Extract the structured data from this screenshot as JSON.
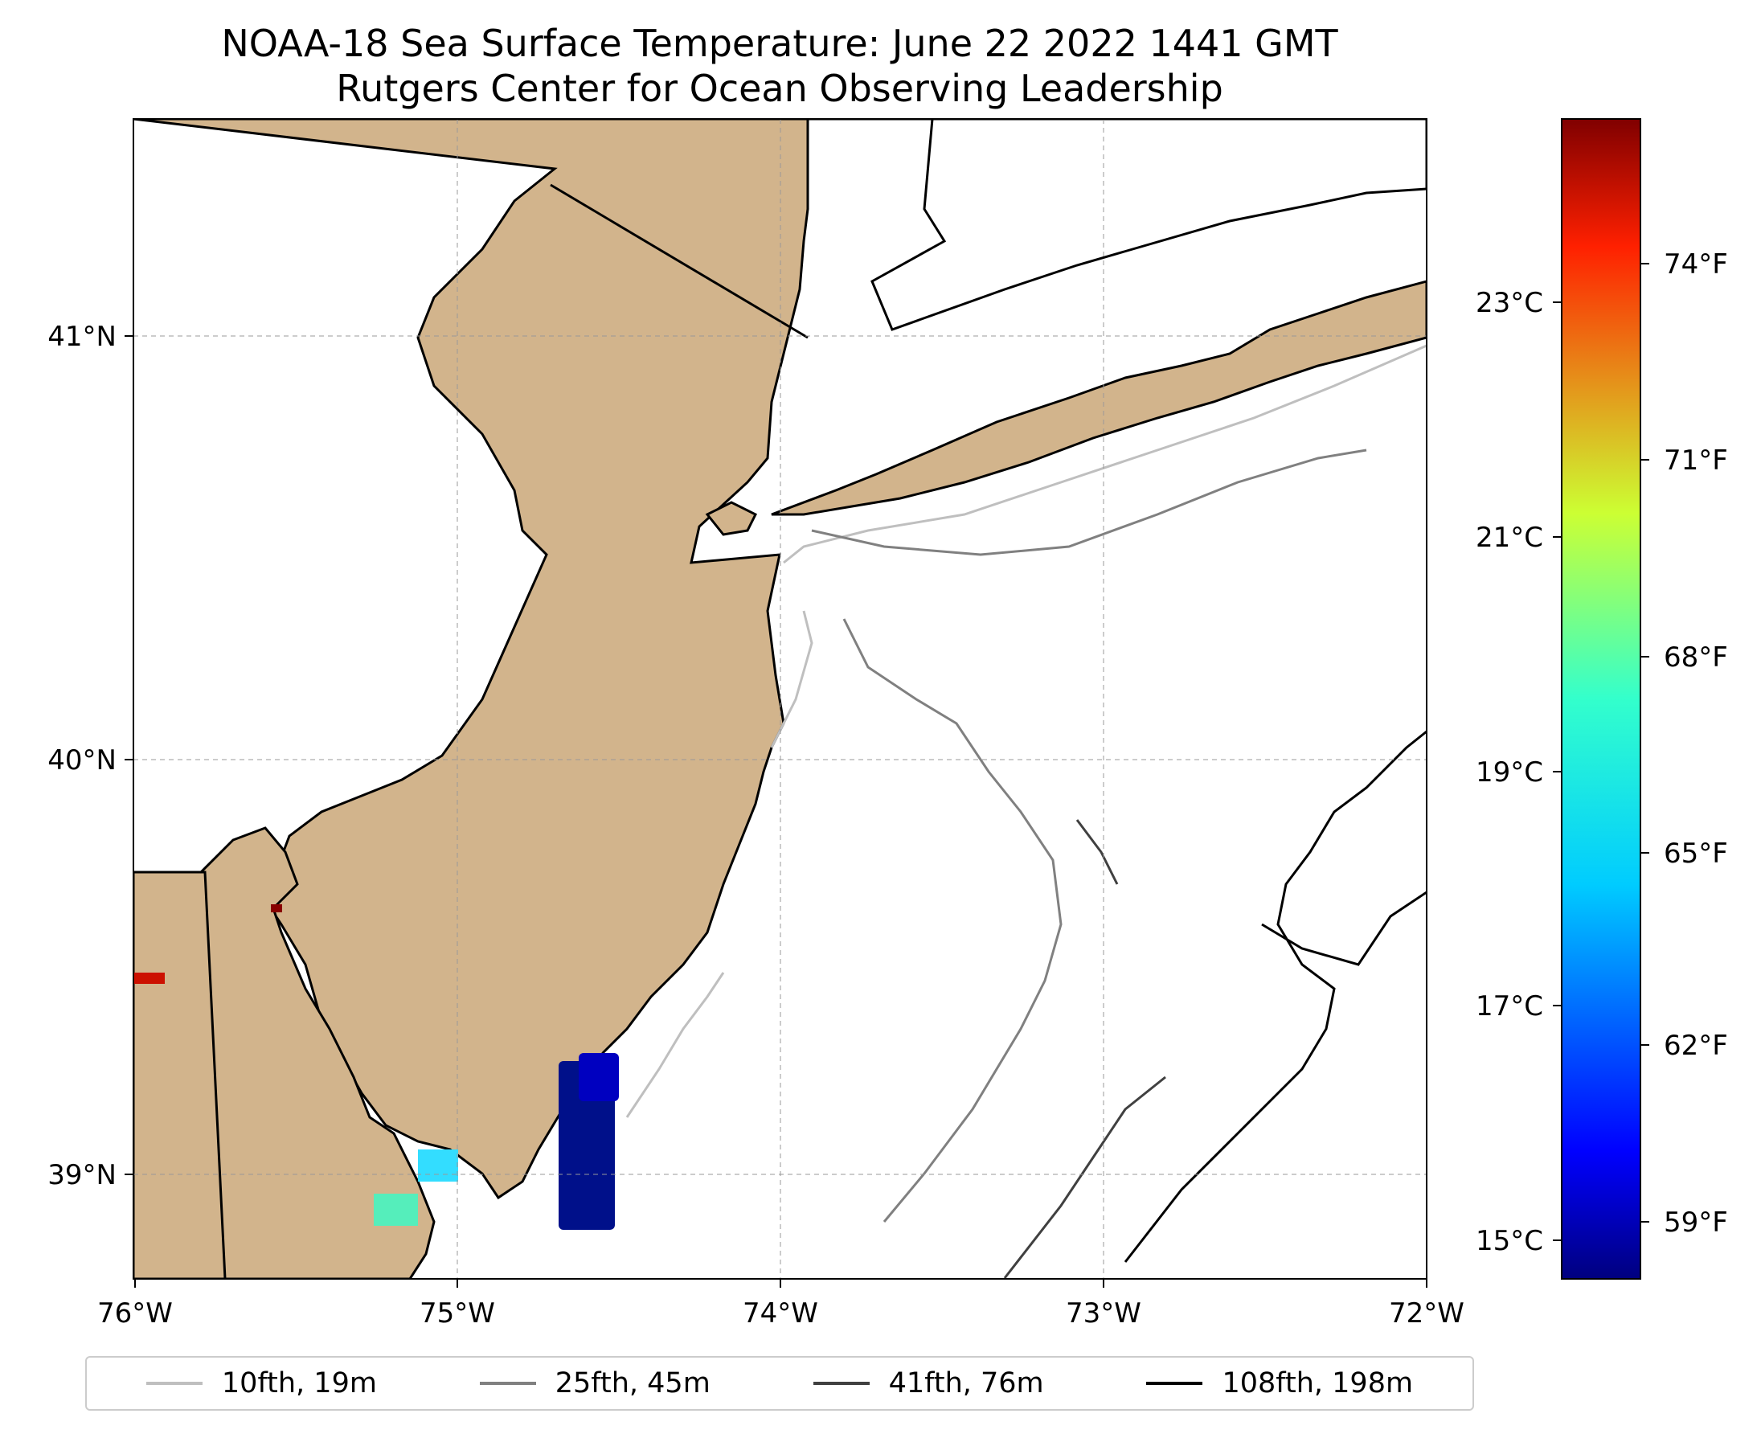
{
  "title": {
    "line1": "NOAA-18 Sea Surface Temperature: June 22 2022 1441 GMT",
    "line2": "Rutgers Center for Ocean Observing Leadership"
  },
  "map": {
    "extent": {
      "lon": [
        -76,
        -72
      ],
      "lat": [
        38.75,
        41.55
      ]
    },
    "x_ticks": [
      "76°W",
      "75°W",
      "74°W",
      "73°W",
      "72°W"
    ],
    "y_ticks": [
      "39°N",
      "40°N",
      "41°N"
    ],
    "land_color": "#D2B48C",
    "ocean_color": "#ffffff"
  },
  "colorbar": {
    "colormap": "jet",
    "celsius_ticks": [
      "15°C",
      "17°C",
      "19°C",
      "21°C",
      "23°C"
    ],
    "fahrenheit_ticks": [
      "59°F",
      "62°F",
      "65°F",
      "68°F",
      "71°F",
      "74°F"
    ],
    "range_f": [
      57.5,
      76.5
    ]
  },
  "legend": [
    {
      "label": "10fth, 19m",
      "color": "#bfbfbf"
    },
    {
      "label": "25fth, 45m",
      "color": "#808080"
    },
    {
      "label": "41fth, 76m",
      "color": "#404040"
    },
    {
      "label": "108fth, 198m",
      "color": "#000000"
    }
  ]
}
